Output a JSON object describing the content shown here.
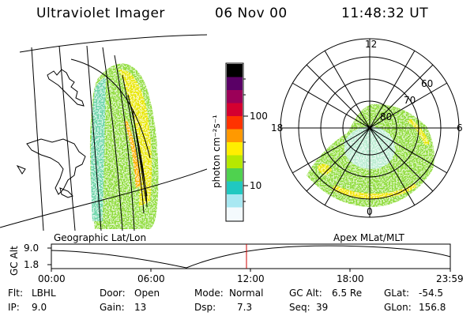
{
  "header": {
    "instrument": "Ultraviolet Imager",
    "date": "06 Nov 00",
    "time": "11:48:32 UT"
  },
  "panels": {
    "left_label": "Geographic Lat/Lon",
    "right_label": "Apex MLat/MLT"
  },
  "colorbar": {
    "unit_label": "photon cm⁻²s⁻¹",
    "ticks": [
      "100",
      "10"
    ],
    "colors": [
      "#000000",
      "#5a0066",
      "#9b0058",
      "#d40030",
      "#ff3300",
      "#ff9900",
      "#ffee00",
      "#b6e800",
      "#4fd24f",
      "#20c8c0",
      "#a8e8f2",
      "#f4fafd"
    ]
  },
  "polar": {
    "mlt_labels": {
      "top": "12",
      "left": "18",
      "right": "6",
      "bottom": "0"
    },
    "lat_labels": [
      "60",
      "70",
      "80"
    ]
  },
  "timeline": {
    "ylabel": "GC Alt",
    "y_ticks": [
      "9.0",
      "1.8"
    ],
    "x_ticks": [
      "00:00",
      "06:00",
      "12:00",
      "18:00",
      "23:59"
    ],
    "marker_color": "#cc0000"
  },
  "status": {
    "flt_label": "Flt:",
    "flt_value": "LBHL",
    "ip_label": "IP:",
    "ip_value": "9.0",
    "door_label": "Door:",
    "door_value": "Open",
    "gain_label": "Gain:",
    "gain_value": "13",
    "mode_label": "Mode:",
    "mode_value": "Normal",
    "dsp_label": "Dsp:",
    "dsp_value": "7.3",
    "gcalt_label": "GC Alt:",
    "gcalt_value": "6.5 Re",
    "seq_label": "Seq:",
    "seq_value": "39",
    "glat_label": "GLat:",
    "glat_value": "-54.5",
    "glon_label": "GLon:",
    "glon_value": "156.8"
  }
}
